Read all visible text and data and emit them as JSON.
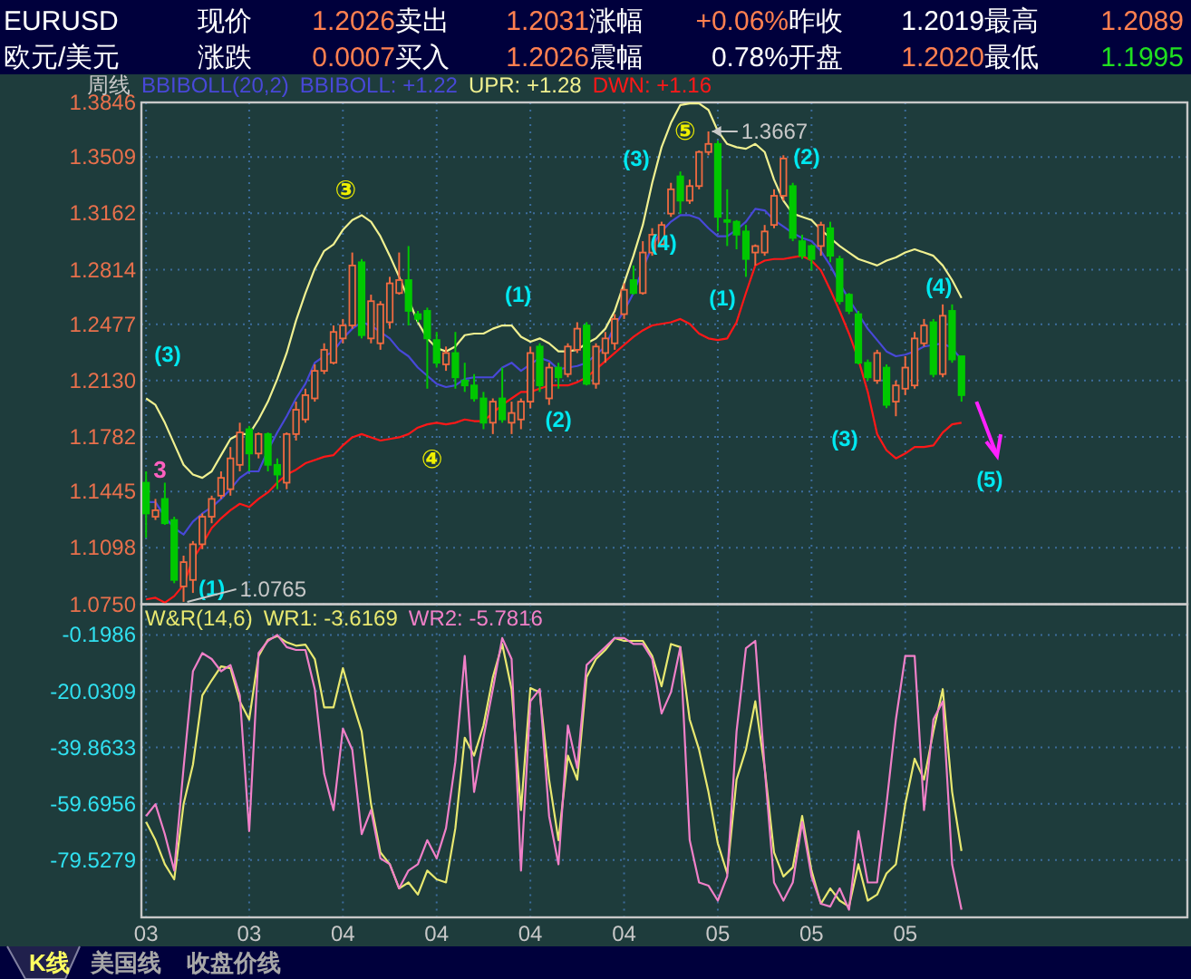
{
  "chart_data": [
    {
      "type": "other",
      "annotations": [
        "EURUSD",
        "现价",
        "1.2026",
        "卖出",
        "1.2031",
        "涨幅",
        "+0.06%",
        "昨收",
        "1.2019",
        "最高",
        "1.2089",
        "欧元/美元",
        "涨跌",
        "0.0007",
        "买入",
        "1.2026",
        "震幅",
        "0.78%",
        "开盘",
        "1.2020",
        "最低",
        "1.1995",
        "K线",
        "美国线",
        "收盘价线"
      ]
    },
    {
      "type": "candlestick",
      "title": "周线",
      "legend_title": "BBIBOLL(20,2)",
      "legend": "top left",
      "grid": true,
      "tick_labels": "y",
      "categories": [
        "03",
        null,
        null,
        null,
        null,
        null,
        null,
        null,
        null,
        null,
        null,
        "03",
        null,
        null,
        null,
        null,
        null,
        null,
        null,
        null,
        null,
        "04",
        null,
        null,
        null,
        null,
        null,
        null,
        null,
        null,
        null,
        "04",
        null,
        null,
        null,
        null,
        null,
        null,
        null,
        null,
        null,
        "04",
        null,
        null,
        null,
        null,
        null,
        null,
        null,
        null,
        null,
        "04",
        null,
        null,
        null,
        null,
        null,
        null,
        null,
        null,
        null,
        "05",
        null,
        null,
        null,
        null,
        null,
        null,
        null,
        null,
        null,
        "05",
        null,
        null,
        null,
        null,
        null,
        null,
        null,
        null,
        null,
        "05",
        null,
        null,
        null,
        null,
        null,
        null
      ],
      "ylim": [
        1.075,
        1.3846
      ],
      "yticks": [
        {
          "value": 1.075,
          "label": "1.0750"
        },
        1.1098,
        1.1445,
        1.1782,
        {
          "value": 1.213,
          "label": "1.2130"
        },
        1.2477,
        1.2814,
        1.3162,
        1.3509,
        1.3846
      ],
      "ohlc": [
        [
          1.15,
          1.157,
          1.116,
          1.131
        ],
        [
          1.129,
          1.14,
          1.127,
          1.133
        ],
        [
          1.14,
          1.15,
          1.124,
          1.125
        ],
        [
          1.127,
          1.129,
          1.088,
          1.09
        ],
        [
          1.086,
          1.105,
          1.0765,
          1.101
        ],
        [
          1.09,
          1.114,
          1.082,
          1.112
        ],
        [
          1.112,
          1.131,
          1.109,
          1.129
        ],
        [
          1.129,
          1.142,
          1.125,
          1.14
        ],
        [
          1.142,
          1.157,
          1.14,
          1.153
        ],
        [
          1.146,
          1.172,
          1.142,
          1.165
        ],
        [
          1.161,
          1.187,
          1.157,
          1.181
        ],
        [
          1.183,
          1.185,
          1.157,
          1.168
        ],
        [
          1.168,
          1.181,
          1.165,
          1.18
        ],
        [
          1.18,
          1.181,
          1.157,
          1.161
        ],
        [
          1.161,
          1.165,
          1.146,
          1.155
        ],
        [
          1.15,
          1.181,
          1.146,
          1.18
        ],
        [
          1.18,
          1.2,
          1.176,
          1.195
        ],
        [
          1.189,
          1.208,
          1.187,
          1.204
        ],
        [
          1.202,
          1.223,
          1.2,
          1.219
        ],
        [
          1.219,
          1.236,
          1.217,
          1.232
        ],
        [
          1.224,
          1.247,
          1.223,
          1.243
        ],
        [
          1.239,
          1.251,
          1.236,
          1.247
        ],
        [
          1.247,
          1.292,
          1.245,
          1.284
        ],
        [
          1.286,
          1.288,
          1.239,
          1.241
        ],
        [
          1.239,
          1.266,
          1.236,
          1.262
        ],
        [
          1.236,
          1.262,
          1.232,
          1.26
        ],
        [
          1.249,
          1.277,
          1.245,
          1.273
        ],
        [
          1.267,
          1.292,
          1.266,
          1.275
        ],
        [
          1.275,
          1.296,
          1.247,
          1.256
        ],
        [
          1.254,
          1.256,
          1.249,
          1.251
        ],
        [
          1.256,
          1.258,
          1.208,
          1.239
        ],
        [
          1.238,
          1.243,
          1.221,
          1.224
        ],
        [
          1.223,
          1.234,
          1.219,
          1.23
        ],
        [
          1.23,
          1.243,
          1.208,
          1.215
        ],
        [
          1.213,
          1.224,
          1.206,
          1.21
        ],
        [
          1.21,
          1.217,
          1.2,
          1.202
        ],
        [
          1.202,
          1.206,
          1.183,
          1.187
        ],
        [
          1.187,
          1.202,
          1.18,
          1.2
        ],
        [
          1.202,
          1.221,
          1.187,
          1.189
        ],
        [
          1.187,
          1.2,
          1.18,
          1.193
        ],
        [
          1.189,
          1.202,
          1.183,
          1.2
        ],
        [
          1.2,
          1.234,
          1.196,
          1.23
        ],
        [
          1.234,
          1.236,
          1.206,
          1.21
        ],
        [
          1.202,
          1.224,
          1.198,
          1.221
        ],
        [
          1.221,
          1.224,
          1.208,
          1.215
        ],
        [
          1.217,
          1.236,
          1.215,
          1.234
        ],
        [
          1.232,
          1.249,
          1.23,
          1.245
        ],
        [
          1.247,
          1.249,
          1.21,
          1.211
        ],
        [
          1.211,
          1.236,
          1.208,
          1.234
        ],
        [
          1.23,
          1.243,
          1.224,
          1.239
        ],
        [
          1.236,
          1.254,
          1.232,
          1.251
        ],
        [
          1.254,
          1.273,
          1.251,
          1.269
        ],
        [
          1.275,
          1.284,
          1.266,
          1.267
        ],
        [
          1.267,
          1.299,
          1.266,
          1.292
        ],
        [
          1.292,
          1.307,
          1.29,
          1.303
        ],
        [
          1.297,
          1.311,
          1.296,
          1.309
        ],
        [
          1.316,
          1.335,
          1.314,
          1.331
        ],
        [
          1.339,
          1.342,
          1.316,
          1.324
        ],
        [
          1.324,
          1.337,
          1.322,
          1.333
        ],
        [
          1.333,
          1.355,
          1.331,
          1.354
        ],
        [
          1.354,
          1.3667,
          1.352,
          1.359
        ],
        [
          1.359,
          1.361,
          1.305,
          1.314
        ],
        [
          1.312,
          1.331,
          1.296,
          1.311
        ],
        [
          1.311,
          1.312,
          1.294,
          1.303
        ],
        [
          1.305,
          1.309,
          1.277,
          1.288
        ],
        [
          1.292,
          1.297,
          1.284,
          1.296
        ],
        [
          1.292,
          1.309,
          1.29,
          1.305
        ],
        [
          1.309,
          1.331,
          1.307,
          1.327
        ],
        [
          1.327,
          1.352,
          1.324,
          1.35
        ],
        [
          1.333,
          1.335,
          1.299,
          1.301
        ],
        [
          1.299,
          1.303,
          1.288,
          1.29
        ],
        [
          1.296,
          1.297,
          1.281,
          1.288
        ],
        [
          1.296,
          1.311,
          1.29,
          1.309
        ],
        [
          1.307,
          1.311,
          1.286,
          1.29
        ],
        [
          1.288,
          1.29,
          1.26,
          1.262
        ],
        [
          1.266,
          1.267,
          1.254,
          1.256
        ],
        [
          1.254,
          1.256,
          1.223,
          1.224
        ],
        [
          1.224,
          1.226,
          1.213,
          1.215
        ],
        [
          1.213,
          1.232,
          1.211,
          1.23
        ],
        [
          1.221,
          1.223,
          1.196,
          1.198
        ],
        [
          1.2,
          1.213,
          1.191,
          1.21
        ],
        [
          1.208,
          1.228,
          1.204,
          1.221
        ],
        [
          1.21,
          1.243,
          1.208,
          1.239
        ],
        [
          1.236,
          1.251,
          1.234,
          1.247
        ],
        [
          1.249,
          1.251,
          1.215,
          1.217
        ],
        [
          1.217,
          1.26,
          1.215,
          1.253
        ],
        [
          1.256,
          1.26,
          1.224,
          1.226
        ],
        [
          1.228,
          1.228,
          1.2,
          1.204
        ]
      ],
      "series": [
        {
          "name": "BBIBOLL: +1.22",
          "type": "line",
          "color": "#4848d8",
          "values": [
            1.138,
            1.138,
            1.129,
            1.122,
            1.118,
            1.126,
            1.131,
            1.135,
            1.14,
            1.146,
            1.153,
            1.157,
            1.157,
            1.17,
            1.181,
            1.191,
            1.202,
            1.211,
            1.224,
            1.228,
            1.231,
            1.239,
            1.245,
            1.249,
            1.247,
            1.243,
            1.239,
            1.232,
            1.228,
            1.221,
            1.216,
            1.211,
            1.209,
            1.21,
            1.214,
            1.215,
            1.215,
            1.215,
            1.221,
            1.224,
            1.219,
            1.223,
            1.227,
            1.225,
            1.22,
            1.221,
            1.222,
            1.224,
            1.229,
            1.234,
            1.247,
            1.256,
            1.267,
            1.282,
            1.296,
            1.305,
            1.311,
            1.315,
            1.315,
            1.313,
            1.307,
            1.302,
            1.302,
            1.306,
            1.311,
            1.319,
            1.318,
            1.312,
            1.308,
            1.304,
            1.301,
            1.299,
            1.293,
            1.284,
            1.273,
            1.263,
            1.254,
            1.245,
            1.238,
            1.231,
            1.228,
            1.229,
            1.231,
            1.234,
            1.235,
            1.236,
            1.233,
            1.226
          ]
        },
        {
          "name": "UPR: +1.28",
          "type": "line",
          "color": "#f0f090",
          "values": [
            1.202,
            1.198,
            1.187,
            1.174,
            1.161,
            1.155,
            1.153,
            1.157,
            1.167,
            1.177,
            1.18,
            1.18,
            1.189,
            1.2,
            1.214,
            1.23,
            1.25,
            1.267,
            1.282,
            1.293,
            1.297,
            1.306,
            1.312,
            1.315,
            1.311,
            1.302,
            1.29,
            1.277,
            1.263,
            1.249,
            1.239,
            1.233,
            1.231,
            1.234,
            1.241,
            1.242,
            1.242,
            1.245,
            1.247,
            1.247,
            1.24,
            1.237,
            1.239,
            1.236,
            1.231,
            1.231,
            1.232,
            1.236,
            1.239,
            1.245,
            1.256,
            1.273,
            1.29,
            1.309,
            1.335,
            1.357,
            1.372,
            1.383,
            1.384,
            1.384,
            1.38,
            1.367,
            1.359,
            1.357,
            1.356,
            1.359,
            1.354,
            1.337,
            1.324,
            1.316,
            1.314,
            1.312,
            1.306,
            1.301,
            1.296,
            1.292,
            1.288,
            1.286,
            1.284,
            1.287,
            1.289,
            1.292,
            1.294,
            1.292,
            1.29,
            1.284,
            1.275,
            1.264
          ]
        },
        {
          "name": "DWN: +1.16",
          "type": "line",
          "color": "#ff1818",
          "values": [
            1.078,
            1.079,
            1.076,
            1.08,
            1.087,
            1.103,
            1.112,
            1.122,
            1.128,
            1.133,
            1.137,
            1.135,
            1.14,
            1.144,
            1.15,
            1.155,
            1.158,
            1.162,
            1.164,
            1.166,
            1.167,
            1.173,
            1.178,
            1.18,
            1.178,
            1.176,
            1.177,
            1.178,
            1.18,
            1.184,
            1.186,
            1.187,
            1.186,
            1.187,
            1.189,
            1.188,
            1.188,
            1.193,
            1.198,
            1.202,
            1.206,
            1.206,
            1.208,
            1.21,
            1.21,
            1.21,
            1.212,
            1.215,
            1.22,
            1.225,
            1.23,
            1.235,
            1.24,
            1.244,
            1.247,
            1.248,
            1.249,
            1.251,
            1.248,
            1.242,
            1.239,
            1.238,
            1.239,
            1.249,
            1.267,
            1.284,
            1.287,
            1.288,
            1.288,
            1.289,
            1.29,
            1.287,
            1.281,
            1.269,
            1.256,
            1.242,
            1.226,
            1.206,
            1.18,
            1.17,
            1.165,
            1.168,
            1.172,
            1.172,
            1.173,
            1.181,
            1.186,
            1.187
          ]
        }
      ],
      "annotations": [
        "③",
        "(3)",
        "3",
        "(1)",
        "④",
        "(2)",
        "(1)",
        "1.0765",
        "⑤",
        "(3)",
        "(4)",
        "(1)",
        "(2)",
        "(3)",
        "(4)",
        "(5)",
        "1.3667"
      ]
    },
    {
      "type": "line",
      "legend_title": "W&R(14,6)",
      "legend": "top left",
      "grid": true,
      "categories": [
        "03",
        null,
        null,
        null,
        null,
        null,
        null,
        null,
        null,
        null,
        null,
        "03",
        null,
        null,
        null,
        null,
        null,
        null,
        null,
        null,
        null,
        "04",
        null,
        null,
        null,
        null,
        null,
        null,
        null,
        null,
        null,
        "04",
        null,
        null,
        null,
        null,
        null,
        null,
        null,
        null,
        null,
        "04",
        null,
        null,
        null,
        null,
        null,
        null,
        null,
        null,
        null,
        "04",
        null,
        null,
        null,
        null,
        null,
        null,
        null,
        null,
        null,
        "05",
        null,
        null,
        null,
        null,
        null,
        null,
        null,
        null,
        null,
        "05",
        null,
        null,
        null,
        null,
        null,
        null,
        null,
        null,
        null,
        "05",
        null,
        null,
        null,
        null,
        null,
        null
      ],
      "ylim": [
        -99.7,
        10.6
      ],
      "yticks": [
        -0.1986,
        -20.0309,
        -39.8633,
        -59.6956,
        -79.5279
      ],
      "series": [
        {
          "name": "WR1: -3.6169",
          "color": "#e8e870",
          "values": [
            -66.1,
            -72.5,
            -81.0,
            -86.3,
            -59.8,
            -45.9,
            -21.5,
            -16.2,
            -11.3,
            -11.9,
            -23.6,
            -30.0,
            -7.6,
            -1.9,
            -0.6,
            -2.8,
            -4.0,
            -3.6,
            -8.7,
            -25.7,
            -25.7,
            -11.9,
            -23.6,
            -34.2,
            -59.8,
            -76.8,
            -81.0,
            -89.5,
            -87.4,
            -91.7,
            -83.2,
            -86.3,
            -87.4,
            -68.3,
            -36.4,
            -42.7,
            -32.1,
            -15.1,
            -3.4,
            -19.3,
            -61.9,
            -18.9,
            -20.4,
            -51.2,
            -72.5,
            -42.7,
            -51.2,
            -15.1,
            -8.7,
            -5.5,
            -1.3,
            -2.3,
            -2.3,
            -2.3,
            -7.6,
            -18.3,
            -3.4,
            -4.5,
            -30.0,
            -40.6,
            -55.5,
            -73.6,
            -84.2,
            -51.2,
            -40.6,
            -23.6,
            -47.0,
            -76.8,
            -85.3,
            -82.1,
            -64.0,
            -83.2,
            -94.9,
            -89.5,
            -93.8,
            -95.9,
            -81.0,
            -93.8,
            -91.7,
            -84.2,
            -81.0,
            -59.8,
            -43.8,
            -51.2,
            -34.2,
            -19.3,
            -55.5,
            -76.3
          ]
        },
        {
          "name": "WR2: -5.7816",
          "color": "#f080c8",
          "values": [
            -64.0,
            -59.8,
            -70.4,
            -83.2,
            -47.0,
            -13.0,
            -6.6,
            -8.7,
            -13.0,
            -10.8,
            -21.5,
            -69.3,
            -6.6,
            -2.3,
            -0.2,
            -4.5,
            -5.5,
            -5.5,
            -19.3,
            -49.1,
            -61.9,
            -33.2,
            -40.6,
            -70.4,
            -61.9,
            -78.9,
            -81.0,
            -89.5,
            -83.2,
            -81.0,
            -72.5,
            -78.9,
            -68.3,
            -44.9,
            -7.6,
            -55.5,
            -36.4,
            -19.3,
            -1.3,
            -8.7,
            -83.2,
            -23.6,
            -19.3,
            -64.0,
            -81.0,
            -32.1,
            -47.0,
            -10.8,
            -7.6,
            -4.5,
            -1.3,
            -1.3,
            -3.4,
            -3.4,
            -8.7,
            -27.9,
            -20.4,
            -4.5,
            -72.5,
            -87.4,
            -88.5,
            -93.8,
            -85.3,
            -34.2,
            -4.9,
            -2.3,
            -47.0,
            -87.4,
            -93.8,
            -87.4,
            -66.1,
            -85.3,
            -94.9,
            -95.9,
            -89.5,
            -97.0,
            -69.3,
            -87.4,
            -87.4,
            -59.8,
            -30.0,
            -7.6,
            -7.6,
            -61.9,
            -30.0,
            -23.6,
            -81.0,
            -97.0
          ]
        }
      ]
    }
  ]
}
